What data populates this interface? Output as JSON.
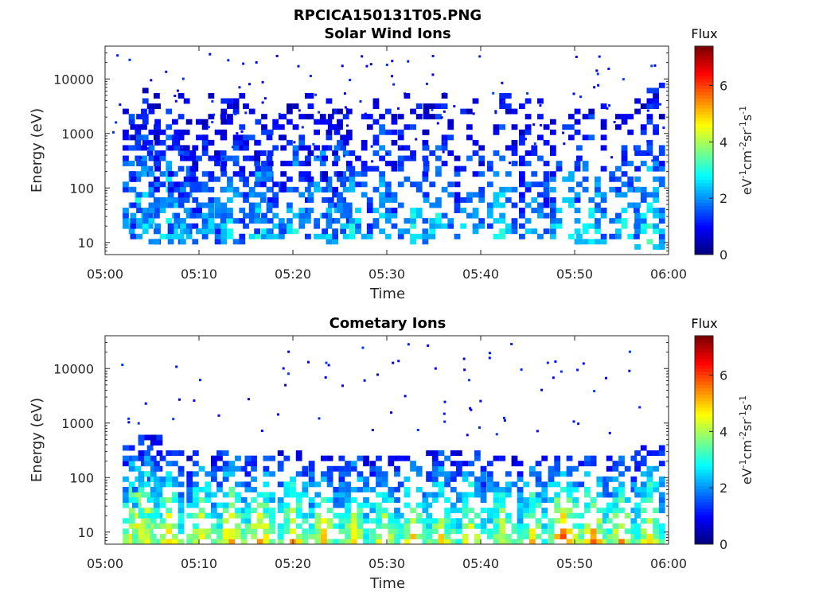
{
  "figure_title": "RPCICA150131T05.PNG",
  "chart_data": [
    {
      "type": "heatmap",
      "title": "Solar Wind Ions",
      "xlabel": "Time",
      "ylabel": "Energy (eV)",
      "yscale": "log",
      "ylim": [
        6,
        40000
      ],
      "xlim": [
        "05:00",
        "06:00"
      ],
      "x_ticks": [
        "05:00",
        "05:10",
        "05:20",
        "05:30",
        "05:40",
        "05:50",
        "06:00"
      ],
      "y_ticks": [
        "10",
        "100",
        "1000",
        "10000"
      ],
      "colorbar": {
        "title": "Flux",
        "label": "eV-1cm-2sr-1s-1",
        "ticks": [
          "0",
          "2",
          "4",
          "6"
        ],
        "range": [
          0,
          7.4
        ]
      },
      "bursts": [
        {
          "t": 3.5,
          "lo": 14,
          "hi": 6000,
          "v": 3.0
        },
        {
          "t": 4.3,
          "lo": 10,
          "hi": 9000,
          "v": 2.6
        },
        {
          "t": 6.8,
          "lo": 10,
          "hi": 8000,
          "v": 3.0
        },
        {
          "t": 8.3,
          "lo": 10,
          "hi": 2500,
          "v": 2.4
        },
        {
          "t": 10.0,
          "lo": 12,
          "hi": 5000,
          "v": 2.6
        },
        {
          "t": 11.3,
          "lo": 12,
          "hi": 3000,
          "v": 2.4
        },
        {
          "t": 13.3,
          "lo": 10,
          "hi": 6000,
          "v": 2.6
        },
        {
          "t": 16.3,
          "lo": 12,
          "hi": 6000,
          "v": 2.7
        },
        {
          "t": 17.5,
          "lo": 12,
          "hi": 3000,
          "v": 2.5
        },
        {
          "t": 20.3,
          "lo": 12,
          "hi": 5000,
          "v": 2.7
        },
        {
          "t": 23.2,
          "lo": 10,
          "hi": 6000,
          "v": 2.8
        },
        {
          "t": 24.7,
          "lo": 14,
          "hi": 3000,
          "v": 2.4
        },
        {
          "t": 26.3,
          "lo": 12,
          "hi": 5000,
          "v": 2.7
        },
        {
          "t": 29.5,
          "lo": 12,
          "hi": 5000,
          "v": 2.7
        },
        {
          "t": 32.8,
          "lo": 10,
          "hi": 6000,
          "v": 2.8
        },
        {
          "t": 35.5,
          "lo": 12,
          "hi": 5000,
          "v": 2.8
        },
        {
          "t": 38.8,
          "lo": 12,
          "hi": 4000,
          "v": 2.6
        },
        {
          "t": 42.3,
          "lo": 12,
          "hi": 5000,
          "v": 2.8
        },
        {
          "t": 45.7,
          "lo": 12,
          "hi": 4000,
          "v": 2.6
        },
        {
          "t": 49.0,
          "lo": 10,
          "hi": 3000,
          "v": 3.2
        },
        {
          "t": 51.8,
          "lo": 10,
          "hi": 5000,
          "v": 3.0
        },
        {
          "t": 55.3,
          "lo": 12,
          "hi": 3000,
          "v": 2.8
        },
        {
          "t": 58.0,
          "lo": 8,
          "hi": 9000,
          "v": 3.1
        }
      ]
    },
    {
      "type": "heatmap",
      "title": "Cometary Ions",
      "xlabel": "Time",
      "ylabel": "Energy (eV)",
      "yscale": "log",
      "ylim": [
        6,
        40000
      ],
      "xlim": [
        "05:00",
        "06:00"
      ],
      "x_ticks": [
        "05:00",
        "05:10",
        "05:20",
        "05:30",
        "05:40",
        "05:50",
        "06:00"
      ],
      "y_ticks": [
        "10",
        "100",
        "1000",
        "10000"
      ],
      "colorbar": {
        "title": "Flux",
        "label": "eV-1cm-2sr-1s-1",
        "ticks": [
          "0",
          "2",
          "4",
          "6"
        ],
        "range": [
          0,
          7.4
        ]
      },
      "bursts": [
        {
          "t": 3.5,
          "lo": 6,
          "hi": 400,
          "v": 5.6
        },
        {
          "t": 4.5,
          "lo": 6,
          "hi": 600,
          "v": 5.0
        },
        {
          "t": 6.8,
          "lo": 6,
          "hi": 300,
          "v": 5.2
        },
        {
          "t": 10.3,
          "lo": 6,
          "hi": 300,
          "v": 5.0
        },
        {
          "t": 13.5,
          "lo": 6,
          "hi": 300,
          "v": 5.3
        },
        {
          "t": 16.5,
          "lo": 6,
          "hi": 250,
          "v": 5.5
        },
        {
          "t": 20.0,
          "lo": 6,
          "hi": 300,
          "v": 5.2
        },
        {
          "t": 23.3,
          "lo": 6,
          "hi": 250,
          "v": 5.0
        },
        {
          "t": 26.5,
          "lo": 6,
          "hi": 250,
          "v": 5.0
        },
        {
          "t": 29.8,
          "lo": 6,
          "hi": 250,
          "v": 4.9
        },
        {
          "t": 32.8,
          "lo": 6,
          "hi": 250,
          "v": 5.2
        },
        {
          "t": 35.8,
          "lo": 6,
          "hi": 300,
          "v": 4.9
        },
        {
          "t": 39.0,
          "lo": 6,
          "hi": 300,
          "v": 4.8
        },
        {
          "t": 42.3,
          "lo": 6,
          "hi": 300,
          "v": 4.7
        },
        {
          "t": 45.5,
          "lo": 6,
          "hi": 250,
          "v": 4.8
        },
        {
          "t": 48.8,
          "lo": 6,
          "hi": 250,
          "v": 6.2
        },
        {
          "t": 52.0,
          "lo": 6,
          "hi": 250,
          "v": 5.6
        },
        {
          "t": 55.0,
          "lo": 6,
          "hi": 250,
          "v": 5.2
        },
        {
          "t": 58.0,
          "lo": 6,
          "hi": 400,
          "v": 5.0
        }
      ]
    }
  ]
}
